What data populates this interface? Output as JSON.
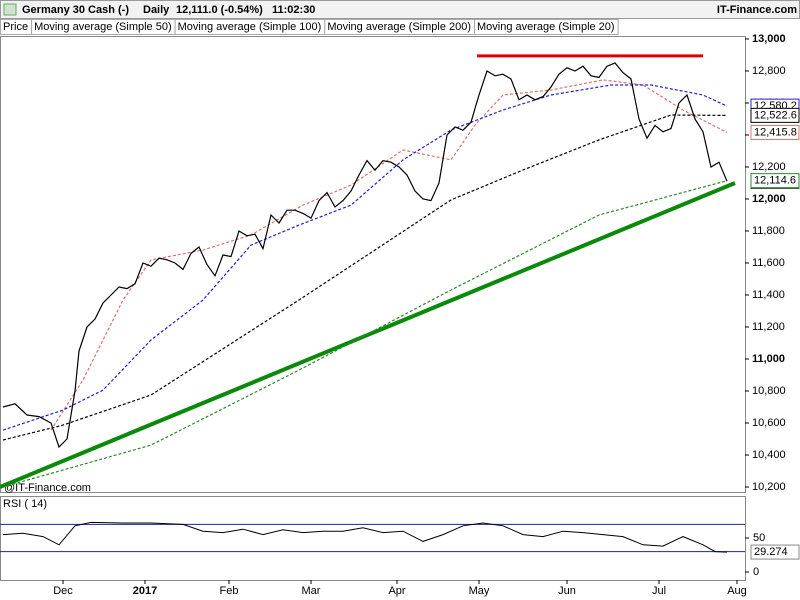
{
  "chart_data": {
    "type": "line",
    "title": "Germany 30 Cash (-)",
    "period": "Daily",
    "quote": "12,111.0 (-0.54%)",
    "time": "11:02:30",
    "source": "IT-Finance.com",
    "watermark": "@IT-Finance.com",
    "xlim": [
      -0.75,
      185.5
    ],
    "xticks": [
      {
        "value": 15,
        "label": "Dec"
      },
      {
        "value": 35.5,
        "label": "2017"
      },
      {
        "value": 56.5,
        "label": "Feb"
      },
      {
        "value": 77,
        "label": "Mar"
      },
      {
        "value": 98.5,
        "label": "Apr"
      },
      {
        "value": 119,
        "label": "May"
      },
      {
        "value": 141,
        "label": "Jun"
      },
      {
        "value": 164,
        "label": "Jul"
      },
      {
        "value": 183.5,
        "label": "Aug"
      }
    ],
    "ylim": [
      10169,
      13056
    ],
    "yticks": [
      {
        "value": 10200,
        "label": "10,200"
      },
      {
        "value": 10400,
        "label": "10,400"
      },
      {
        "value": 10600,
        "label": "10,600"
      },
      {
        "value": 10800,
        "label": "10,800"
      },
      {
        "value": 11000,
        "label": "11,000"
      },
      {
        "value": 11200,
        "label": "11,200"
      },
      {
        "value": 11400,
        "label": "11,400"
      },
      {
        "value": 11600,
        "label": "11,600"
      },
      {
        "value": 11800,
        "label": "11,800"
      },
      {
        "value": 12000,
        "label": "12,000"
      },
      {
        "value": 12200,
        "label": "12,200"
      },
      {
        "value": 12400,
        "label": "12,400"
      },
      {
        "value": 12600,
        "label": "12,600"
      },
      {
        "value": 12800,
        "label": "12,800"
      },
      {
        "value": 13000,
        "label": "13,000"
      }
    ],
    "grid": false,
    "series": [
      {
        "name": "Price",
        "color": "#000000",
        "dash": false,
        "last": {
          "value": 12111.0,
          "label": "12,111.0"
        },
        "x": [
          0,
          3,
          6,
          9,
          12,
          14,
          16,
          18,
          19,
          21,
          23,
          25,
          27,
          29,
          31,
          33,
          35,
          37,
          39,
          41,
          43,
          45,
          47,
          49,
          51,
          53,
          55,
          57,
          59,
          61,
          63,
          65,
          67,
          69,
          71,
          73,
          75,
          77,
          79,
          81,
          83,
          85,
          87,
          89,
          91,
          93,
          95,
          97,
          99,
          101,
          103,
          105,
          107,
          109,
          111,
          113,
          115,
          117,
          119,
          121,
          123,
          125,
          127,
          129,
          131,
          133,
          135,
          137,
          139,
          141,
          143,
          145,
          147,
          149,
          151,
          153,
          155,
          157,
          159,
          161,
          163,
          165,
          167,
          169,
          171,
          173,
          175,
          177,
          179,
          181
        ],
        "values": [
          10700,
          10720,
          10650,
          10640,
          10600,
          10450,
          10500,
          10800,
          11050,
          11200,
          11250,
          11350,
          11400,
          11450,
          11440,
          11470,
          11600,
          11580,
          11630,
          11620,
          11600,
          11560,
          11660,
          11700,
          11590,
          11520,
          11650,
          11640,
          11800,
          11770,
          11780,
          11690,
          11900,
          11850,
          11930,
          11930,
          11910,
          11880,
          11990,
          12040,
          11950,
          11990,
          12050,
          12150,
          12240,
          12180,
          12240,
          12230,
          12200,
          12150,
          12050,
          12000,
          11990,
          12100,
          12400,
          12450,
          12430,
          12480,
          12650,
          12800,
          12770,
          12780,
          12750,
          12620,
          12650,
          12620,
          12640,
          12700,
          12780,
          12820,
          12800,
          12830,
          12770,
          12760,
          12830,
          12850,
          12790,
          12750,
          12500,
          12380,
          12460,
          12420,
          12440,
          12600,
          12650,
          12500,
          12420,
          12200,
          12230,
          12111.0
        ]
      },
      {
        "name": "Moving average (Simple 50)",
        "color": "#2020d0",
        "dash": true,
        "last": {
          "value": 12580.2,
          "label": "12,580.2"
        },
        "x": [
          0,
          15,
          25,
          37,
          50,
          62,
          74,
          87,
          100,
          112,
          125,
          137,
          152,
          162,
          175,
          181
        ],
        "values": [
          10556,
          10681,
          10806,
          11119,
          11369,
          11712,
          11837,
          11962,
          12244,
          12431,
          12556,
          12650,
          12712,
          12712,
          12650,
          12580.2
        ]
      },
      {
        "name": "Moving average (Simple 100)",
        "color": "#000000",
        "dash": true,
        "last": {
          "value": 12522.6,
          "label": "12,522.6"
        },
        "x": [
          0,
          15,
          37,
          74,
          93,
          112,
          130,
          149,
          167,
          181
        ],
        "values": [
          10494,
          10587,
          10775,
          11369,
          11681,
          11994,
          12181,
          12369,
          12525,
          12522.6
        ]
      },
      {
        "name": "Moving average (Simple 200)",
        "color": "#2a8a2a",
        "dash": true,
        "last": {
          "value": 12114.6,
          "label": "12,114.6"
        },
        "x": [
          0,
          37,
          74,
          112,
          149,
          181
        ],
        "values": [
          10200,
          10462,
          10931,
          11431,
          11900,
          12114.6
        ]
      },
      {
        "name": "Moving average (Simple 20)",
        "color": "#e07070",
        "dash": true,
        "last": {
          "value": 12415.8,
          "label": "12,415.8"
        },
        "x": [
          12,
          20,
          30,
          37,
          50,
          62,
          75,
          87,
          100,
          112,
          118,
          125,
          137,
          150,
          160,
          170,
          181
        ],
        "values": [
          10556,
          10869,
          11369,
          11619,
          11681,
          11775,
          11962,
          12087,
          12306,
          12244,
          12462,
          12650,
          12681,
          12744,
          12712,
          12556,
          12415.8
        ]
      }
    ],
    "support_line": {
      "color": "#0a8a0a",
      "x": [
        -0.75,
        183
      ],
      "values": [
        10200,
        12100
      ]
    },
    "resistance_line": {
      "color": "#e00000",
      "x": [
        118.5,
        175
      ],
      "values": [
        12894,
        12894
      ]
    },
    "rsi": {
      "label": "RSI ( 14)",
      "color": "#000000",
      "level_color": "#2020a0",
      "ylim": [
        -11.8,
        110.3
      ],
      "yticks": [
        0,
        50
      ],
      "levels": [
        70,
        30
      ],
      "last": {
        "value": 29.274,
        "label": "29.274"
      },
      "x": [
        0,
        5,
        10,
        14,
        18,
        22,
        30,
        37,
        45,
        50,
        55,
        60,
        65,
        70,
        75,
        80,
        85,
        90,
        95,
        100,
        105,
        110,
        115,
        120,
        125,
        130,
        135,
        140,
        145,
        150,
        155,
        160,
        165,
        170,
        175,
        178,
        181
      ],
      "values": [
        55,
        57,
        52,
        40,
        68,
        73,
        72,
        72,
        70,
        60,
        58,
        63,
        55,
        62,
        58,
        60,
        60,
        65,
        58,
        60,
        45,
        55,
        68,
        72,
        68,
        55,
        52,
        60,
        58,
        55,
        52,
        40,
        38,
        52,
        40,
        30,
        29.274
      ]
    }
  }
}
